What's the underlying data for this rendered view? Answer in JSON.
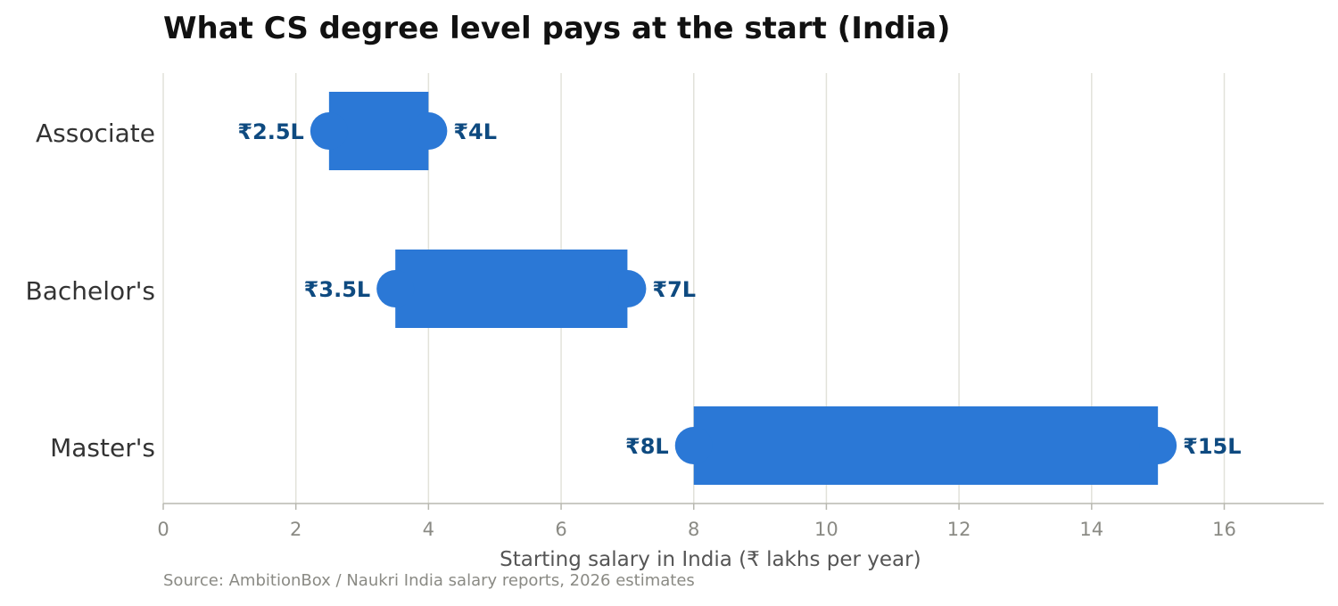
{
  "chart_data": {
    "type": "bar",
    "subtype": "range",
    "title": "What CS degree level pays at the start (India)",
    "xlabel": "Starting salary in India (₹ lakhs per year)",
    "ylabel": "",
    "xlim": [
      0,
      17.5
    ],
    "xticks": [
      0,
      2,
      4,
      6,
      8,
      10,
      12,
      14,
      16
    ],
    "grid": "vertical",
    "categories": [
      "Associate",
      "Bachelor's",
      "Master's"
    ],
    "ranges": [
      {
        "category": "Associate",
        "low": 2.5,
        "high": 4,
        "low_label": "₹2.5L",
        "high_label": "₹4L"
      },
      {
        "category": "Bachelor's",
        "low": 3.5,
        "high": 7,
        "low_label": "₹3.5L",
        "high_label": "₹7L"
      },
      {
        "category": "Master's",
        "low": 8,
        "high": 15,
        "low_label": "₹8L",
        "high_label": "₹15L"
      }
    ],
    "colors": {
      "bar": "#2b78d6",
      "value_label": "#0e4a80",
      "grid": "#e2e2da",
      "axis": "#b8b8b0",
      "tick_label": "#8a8a84",
      "category_label": "#333333",
      "axis_label": "#555555"
    },
    "source": "Source: AmbitionBox / Naukri India salary reports, 2026 estimates"
  }
}
